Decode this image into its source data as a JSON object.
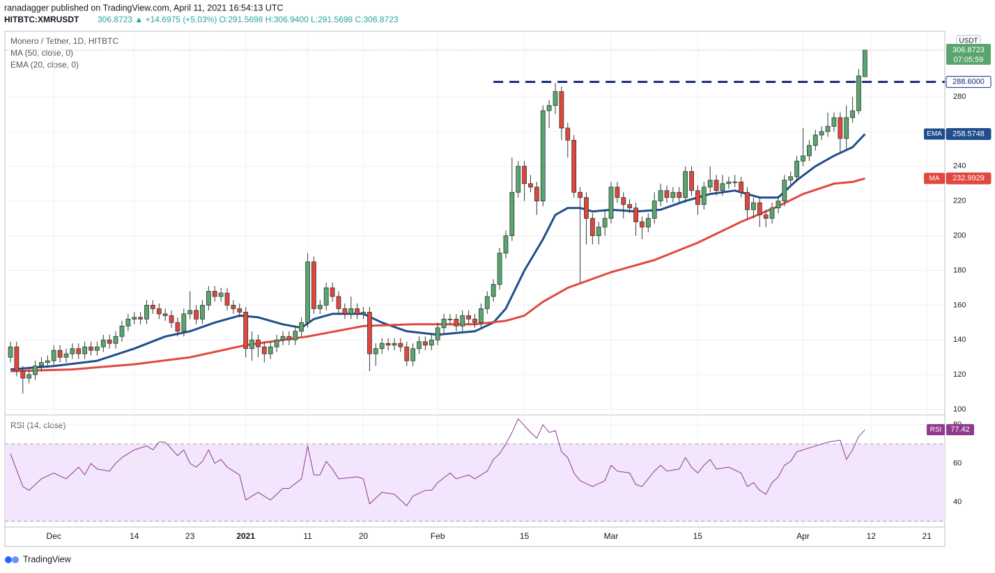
{
  "header": {
    "publisher": "ranadagger published on TradingView.com, April 11, 2021 16:54:13 UTC",
    "symbol": "HITBTC:XMRUSDT",
    "quote": "306.8723 ▲ +14.6975 (+5.03%) O:291.5698 H:306.9400 L:291.5698 C:306.8723"
  },
  "footer": "TradingView",
  "chart_data": {
    "type": "candlestick",
    "title": "Monero / Tether, 1D, HITBTC",
    "y_axis_label": "USDT",
    "countdown": "07:05:59",
    "up_color": "#5aa56f",
    "down_color": "#e2443e",
    "grid": true,
    "open": [
      130,
      136,
      122,
      118,
      120,
      125,
      127,
      128,
      134,
      130,
      132,
      135,
      132,
      136,
      134,
      136,
      140,
      138,
      142,
      148,
      152,
      153,
      152,
      160,
      158,
      155,
      154,
      150,
      145,
      155,
      157,
      152,
      160,
      168,
      165,
      167,
      160,
      158,
      156,
      135,
      140,
      136,
      132,
      136,
      140,
      142,
      140,
      145,
      150,
      185,
      158,
      160,
      170,
      165,
      158,
      155,
      158,
      155,
      156,
      132,
      135,
      138,
      137,
      138,
      136,
      128,
      135,
      139,
      137,
      140,
      147,
      152,
      152,
      148,
      154,
      152,
      150,
      158,
      165,
      172,
      190,
      200,
      225,
      240,
      230,
      228,
      220,
      272,
      275,
      283,
      262,
      255,
      225,
      222,
      210,
      200,
      205,
      210,
      228,
      222,
      218,
      216,
      208,
      205,
      210,
      220,
      226,
      222,
      225,
      222,
      237,
      226,
      218,
      228,
      232,
      226,
      230,
      231,
      231,
      225,
      215,
      219,
      212,
      210,
      216,
      220,
      232,
      234,
      243,
      246,
      252,
      258,
      260,
      263,
      268,
      256,
      268,
      272,
      291.5698
    ],
    "high": [
      139,
      139,
      125,
      123,
      128,
      130,
      131,
      137,
      137,
      135,
      138,
      138,
      139,
      139,
      139,
      143,
      143,
      145,
      151,
      155,
      156,
      156,
      163,
      163,
      161,
      158,
      157,
      153,
      158,
      168,
      160,
      163,
      171,
      171,
      170,
      170,
      163,
      161,
      159,
      145,
      143,
      139,
      139,
      143,
      145,
      145,
      148,
      153,
      190,
      188,
      163,
      173,
      173,
      168,
      161,
      165,
      161,
      159,
      159,
      138,
      141,
      141,
      141,
      141,
      139,
      138,
      142,
      142,
      143,
      150,
      155,
      155,
      155,
      157,
      157,
      155,
      161,
      168,
      175,
      193,
      203,
      245,
      243,
      243,
      235,
      231,
      275,
      278,
      288,
      286,
      265,
      258,
      228,
      225,
      213,
      208,
      215,
      231,
      231,
      225,
      221,
      219,
      211,
      213,
      225,
      230,
      229,
      228,
      228,
      240,
      240,
      229,
      231,
      240,
      235,
      235,
      234,
      235,
      234,
      228,
      222,
      222,
      215,
      219,
      223,
      235,
      237,
      246,
      262,
      255,
      261,
      263,
      271,
      271,
      271,
      275,
      280,
      296,
      306.94
    ],
    "low": [
      127,
      119,
      109,
      115,
      117,
      122,
      124,
      125,
      127,
      127,
      129,
      129,
      129,
      131,
      131,
      133,
      135,
      135,
      139,
      145,
      149,
      149,
      149,
      155,
      152,
      151,
      147,
      142,
      142,
      152,
      149,
      149,
      157,
      162,
      162,
      157,
      155,
      153,
      130,
      128,
      130,
      127,
      129,
      133,
      137,
      137,
      137,
      142,
      147,
      155,
      155,
      157,
      162,
      155,
      152,
      152,
      152,
      152,
      122,
      125,
      132,
      134,
      134,
      133,
      125,
      125,
      132,
      134,
      134,
      137,
      144,
      149,
      145,
      145,
      149,
      147,
      147,
      155,
      162,
      169,
      187,
      197,
      222,
      220,
      225,
      212,
      217,
      262,
      270,
      255,
      245,
      222,
      173,
      195,
      195,
      195,
      200,
      207,
      219,
      210,
      213,
      200,
      198,
      202,
      207,
      217,
      219,
      219,
      219,
      219,
      223,
      212,
      215,
      225,
      223,
      223,
      227,
      228,
      222,
      210,
      210,
      205,
      205,
      207,
      213,
      217,
      229,
      231,
      240,
      243,
      249,
      255,
      257,
      260,
      248,
      250,
      265,
      270,
      291.5698
    ],
    "close": [
      136,
      122,
      118,
      120,
      125,
      127,
      128,
      134,
      130,
      132,
      135,
      132,
      136,
      134,
      136,
      140,
      138,
      142,
      148,
      152,
      153,
      152,
      160,
      158,
      155,
      154,
      150,
      145,
      155,
      157,
      152,
      160,
      168,
      165,
      167,
      160,
      158,
      156,
      135,
      140,
      136,
      132,
      136,
      140,
      142,
      140,
      145,
      150,
      185,
      158,
      160,
      170,
      165,
      158,
      155,
      158,
      155,
      156,
      132,
      135,
      138,
      137,
      138,
      136,
      128,
      135,
      139,
      137,
      140,
      147,
      152,
      152,
      148,
      154,
      152,
      150,
      158,
      165,
      172,
      190,
      200,
      225,
      240,
      230,
      228,
      220,
      272,
      275,
      283,
      262,
      255,
      225,
      222,
      210,
      200,
      205,
      210,
      228,
      222,
      218,
      216,
      208,
      205,
      210,
      220,
      226,
      222,
      225,
      222,
      237,
      226,
      218,
      228,
      232,
      226,
      230,
      231,
      231,
      225,
      215,
      219,
      212,
      210,
      216,
      220,
      232,
      234,
      243,
      246,
      252,
      258,
      260,
      263,
      268,
      256,
      268,
      272,
      292,
      306.8723
    ],
    "xlim": [
      -0.9,
      150.9
    ],
    "xticks": [
      {
        "value": 7,
        "label": "Dec"
      },
      {
        "value": 20,
        "label": "14"
      },
      {
        "value": 29,
        "label": "23"
      },
      {
        "value": 38,
        "label": "2021"
      },
      {
        "value": 48,
        "label": "11"
      },
      {
        "value": 57,
        "label": "20"
      },
      {
        "value": 69,
        "label": "Feb"
      },
      {
        "value": 83,
        "label": "15"
      },
      {
        "value": 97,
        "label": "Mar"
      },
      {
        "value": 111,
        "label": "15"
      },
      {
        "value": 128,
        "label": "Apr"
      },
      {
        "value": 139,
        "label": "12"
      },
      {
        "value": 148,
        "label": "21"
      }
    ],
    "ylim": [
      97.2,
      317.7
    ],
    "yticks": [
      100,
      120,
      140,
      160,
      180,
      200,
      220,
      240,
      260,
      280
    ],
    "level": {
      "value": 288.6,
      "label": "288.6000",
      "color": "#1a237e"
    },
    "series": [
      {
        "name": "EMA (20, close, 0)",
        "tag": "EMA",
        "color": "#1f4e8c",
        "x": [
          0,
          7,
          14,
          20,
          25,
          29,
          33,
          37,
          40,
          44,
          47,
          49,
          52,
          57,
          60,
          64,
          69,
          75,
          78,
          80,
          83,
          86,
          88,
          90,
          92,
          94,
          97,
          101,
          105,
          109,
          113,
          117,
          121,
          124,
          127,
          130,
          133,
          136,
          138
        ],
        "values": [
          123,
          125,
          128,
          135,
          142,
          145,
          150,
          154,
          153,
          149,
          147,
          152,
          155,
          155,
          150,
          145,
          143,
          145,
          150,
          158,
          180,
          198,
          212,
          216,
          216,
          214,
          215,
          214,
          215,
          220,
          224,
          226,
          222,
          222,
          232,
          240,
          246,
          251,
          258.5748
        ]
      },
      {
        "name": "MA (50, close, 0)",
        "tag": "MA",
        "color": "#e0483f",
        "x": [
          0,
          10,
          20,
          29,
          38,
          48,
          57,
          65,
          75,
          80,
          83,
          86,
          90,
          97,
          104,
          111,
          118,
          124,
          128,
          133,
          136,
          138
        ],
        "values": [
          122,
          123,
          126,
          130,
          137,
          142,
          148,
          149,
          149,
          151,
          154,
          162,
          170,
          179,
          186,
          196,
          208,
          217,
          224,
          230,
          231,
          232.9929
        ]
      }
    ],
    "rsi": {
      "name": "RSI (14, close)",
      "tag": "RSI",
      "color": "#8e3a8e",
      "band_color": "#f3e5fb",
      "ylim": [
        27,
        84.7
      ],
      "yticks": [
        40,
        60,
        80
      ],
      "bands": [
        30,
        70
      ],
      "x": [
        0,
        2,
        3,
        5,
        7,
        9,
        11,
        12,
        13,
        14,
        16,
        17,
        18,
        20,
        22,
        23,
        24,
        25,
        27,
        28,
        29,
        30,
        31,
        32,
        33,
        34,
        35,
        36,
        37,
        38,
        40,
        42,
        44,
        45,
        47,
        48,
        49,
        50,
        51,
        52,
        53,
        56,
        57,
        58,
        60,
        62,
        64,
        65,
        67,
        68,
        69,
        71,
        72,
        74,
        75,
        77,
        78,
        79,
        80,
        81,
        82,
        84,
        85,
        86,
        87,
        88,
        89,
        90,
        91,
        92,
        94,
        96,
        97,
        98,
        100,
        101,
        102,
        103,
        104,
        105,
        106,
        108,
        109,
        110,
        111,
        112,
        113,
        114,
        116,
        118,
        119,
        120,
        121,
        122,
        123,
        124,
        125,
        126,
        127,
        129,
        131,
        132,
        134,
        135,
        136,
        137,
        138
      ],
      "values": [
        65,
        48,
        46,
        52,
        55,
        52,
        58,
        54,
        60,
        57,
        56,
        60,
        63,
        67,
        69,
        67,
        71,
        71,
        64,
        67,
        60,
        58,
        61,
        67,
        60,
        62,
        58,
        56,
        54,
        41,
        45,
        41,
        47,
        47,
        52,
        69,
        54,
        54,
        61,
        57,
        52,
        53,
        52,
        39,
        45,
        44,
        38,
        43,
        46,
        46,
        50,
        55,
        52,
        54,
        52,
        56,
        62,
        65,
        70,
        76,
        83,
        76,
        73,
        80,
        76,
        77,
        66,
        63,
        55,
        51,
        48,
        51,
        59,
        56,
        55,
        49,
        48,
        52,
        56,
        59,
        56,
        57,
        63,
        58,
        55,
        59,
        62,
        57,
        58,
        55,
        48,
        50,
        46,
        44,
        50,
        53,
        59,
        61,
        66,
        68,
        70,
        71,
        72,
        62,
        67,
        74,
        77.42
      ]
    }
  }
}
